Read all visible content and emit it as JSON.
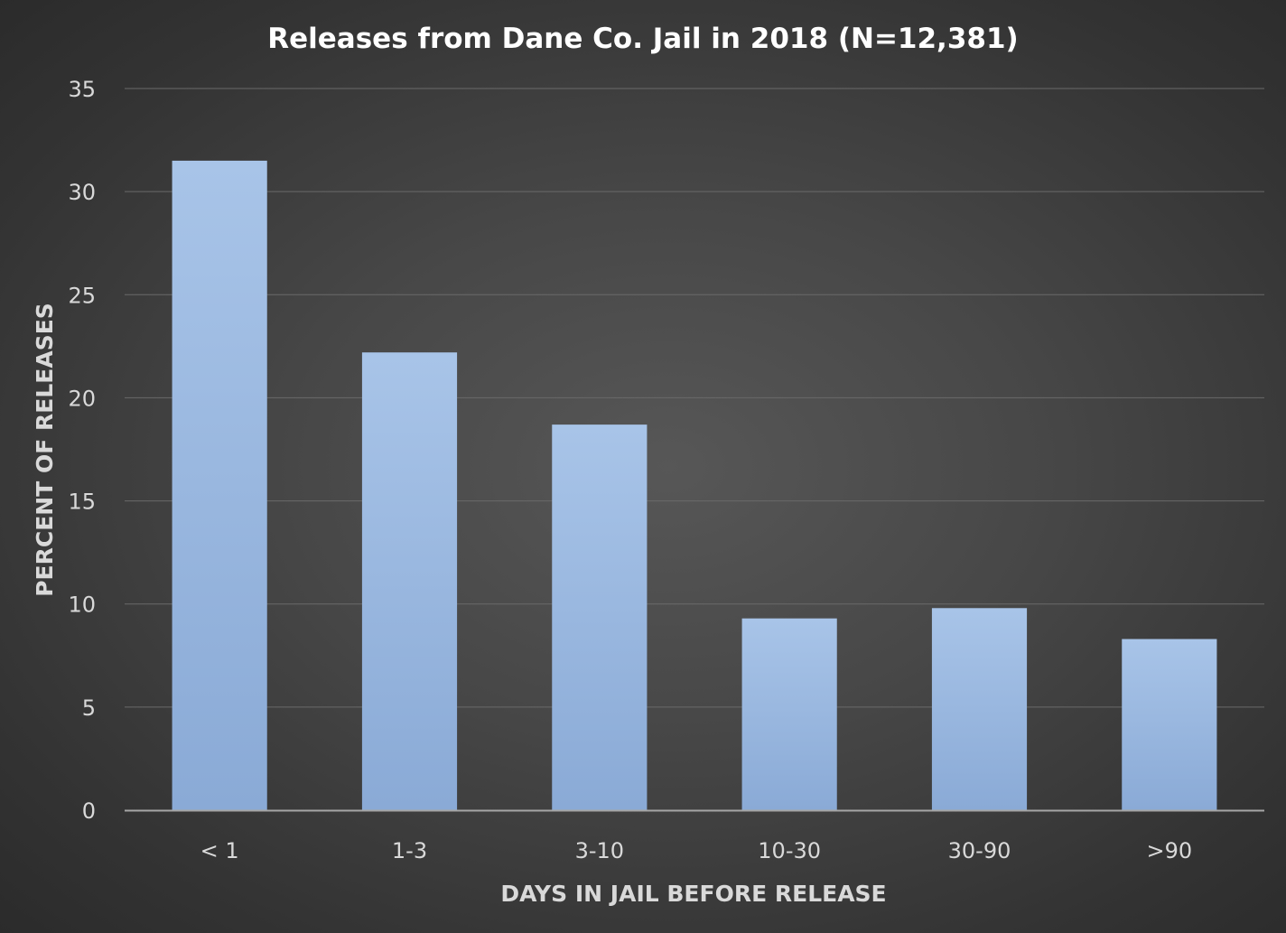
{
  "chart_data": {
    "type": "bar",
    "title": "Releases from Dane Co. Jail in 2018 (N=12,381)",
    "xlabel": "DAYS IN JAIL BEFORE RELEASE",
    "ylabel": "PERCENT OF RELEASES",
    "categories": [
      "< 1",
      "1-3",
      "3-10",
      "10-30",
      "30-90",
      ">90"
    ],
    "values": [
      31.5,
      22.2,
      18.7,
      9.3,
      9.8,
      8.3
    ],
    "ylim": [
      0,
      35
    ],
    "yticks": [
      "0",
      "5",
      "10",
      "15",
      "20",
      "25",
      "30",
      "35"
    ],
    "grid": true,
    "legend": "none",
    "colors": {
      "bar_top": "#a8c4e8",
      "bar_bottom": "#8aaad6",
      "gridline": "#6a6a6a",
      "axis_line": "#a6a6a6",
      "tick_text": "#d9d9d9",
      "title_text": "#ffffff",
      "label_text": "#d9d9d9"
    }
  }
}
